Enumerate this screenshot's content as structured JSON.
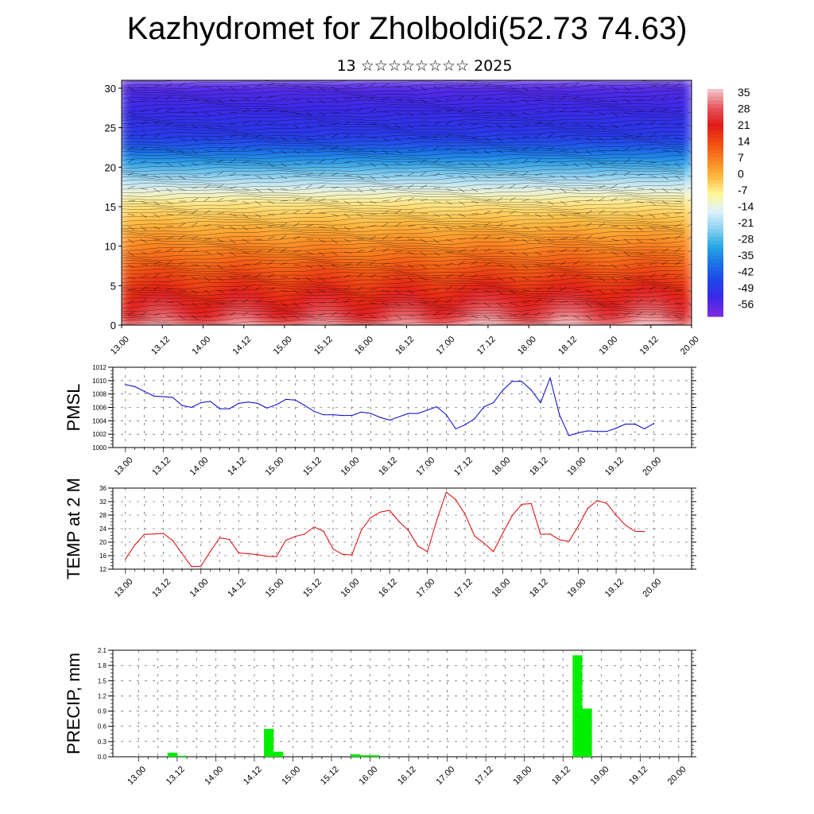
{
  "title": "Kazhydromet for Zholboldi(52.73 74.63)",
  "subtitle": "13 ☆☆☆☆☆☆☆☆ 2025",
  "chart_data": [
    {
      "type": "heatmap",
      "name": "cross-section temperature and wind",
      "x_tick_labels": [
        "13.00",
        "13.12",
        "14.00",
        "14.12",
        "15.00",
        "15.12",
        "16.00",
        "16.12",
        "17.00",
        "17.12",
        "18.00",
        "18.12",
        "19.00",
        "19.12",
        "20.00"
      ],
      "y_ticks": [
        0,
        5,
        10,
        15,
        20,
        25,
        30
      ],
      "ylim": [
        0,
        31
      ],
      "colorbar_labels": [
        "35",
        "28",
        "21",
        "14",
        "7",
        "0",
        "-7",
        "-14",
        "-21",
        "-28",
        "-35",
        "-42",
        "-49",
        "-56"
      ],
      "colorbar_colors": [
        "#f3c0c4",
        "#e5545a",
        "#e01a18",
        "#f04c12",
        "#f98222",
        "#fdb93e",
        "#fff79a",
        "#dff2fa",
        "#8fd2f0",
        "#29a9e4",
        "#1a74e6",
        "#1f47e8",
        "#3b28e8",
        "#7a2ce0"
      ]
    },
    {
      "type": "line",
      "ylabel": "PMSL",
      "x_tick_labels": [
        "13.00",
        "13.12",
        "14.00",
        "14.12",
        "15.00",
        "15.12",
        "16.00",
        "16.12",
        "17.00",
        "17.12",
        "18.00",
        "18.12",
        "19.00",
        "19.12",
        "20.00"
      ],
      "ylim": [
        1000,
        1012
      ],
      "y_ticks": [
        1000,
        1002,
        1004,
        1006,
        1008,
        1010,
        1012
      ],
      "color": "#0000cc",
      "values": [
        1009.4,
        1009.1,
        1008.4,
        1007.7,
        1007.6,
        1007.5,
        1006.3,
        1006.0,
        1006.7,
        1006.9,
        1005.8,
        1005.8,
        1006.6,
        1006.8,
        1006.6,
        1005.9,
        1006.4,
        1007.2,
        1007.1,
        1006.3,
        1005.4,
        1004.9,
        1004.9,
        1004.8,
        1004.8,
        1005.3,
        1005.1,
        1004.5,
        1004.1,
        1004.6,
        1005.1,
        1005.1,
        1005.6,
        1006.1,
        1004.9,
        1002.8,
        1003.4,
        1004.3,
        1006.1,
        1006.7,
        1008.6,
        1009.9,
        1009.9,
        1008.6,
        1006.7,
        1010.4,
        1004.9,
        1001.8,
        1002.2,
        1002.5,
        1002.4,
        1002.4,
        1002.9,
        1003.5,
        1003.5,
        1002.8,
        1003.6
      ]
    },
    {
      "type": "line",
      "ylabel": "TEMP at 2 M",
      "x_tick_labels": [
        "13.00",
        "13.12",
        "14.00",
        "14.12",
        "15.00",
        "15.12",
        "16.00",
        "16.12",
        "17.00",
        "17.12",
        "18.00",
        "18.12",
        "19.00",
        "19.12",
        "20.00"
      ],
      "ylim": [
        12,
        36
      ],
      "y_ticks": [
        12,
        16,
        20,
        24,
        28,
        32,
        36
      ],
      "color": "#dd0000",
      "values": [
        15.0,
        19.2,
        22.3,
        22.4,
        22.6,
        20.5,
        16.6,
        12.8,
        12.9,
        17.3,
        21.3,
        20.8,
        16.8,
        16.6,
        16.3,
        15.8,
        15.7,
        20.6,
        21.7,
        22.4,
        24.5,
        23.2,
        18.0,
        16.4,
        16.2,
        23.6,
        27.3,
        28.9,
        29.4,
        26.1,
        23.4,
        18.8,
        17.2,
        26.5,
        34.8,
        32.6,
        28.2,
        21.8,
        19.7,
        17.2,
        22.7,
        27.9,
        31.2,
        31.4,
        22.3,
        22.4,
        20.7,
        20.2,
        24.8,
        30.0,
        32.3,
        31.5,
        28.0,
        25.0,
        23.2,
        23.1
      ]
    },
    {
      "type": "bar",
      "ylabel": "PRECIP, mm",
      "x_tick_labels": [
        "13.00",
        "13.12",
        "14.00",
        "14.12",
        "15.00",
        "15.12",
        "16.00",
        "16.12",
        "17.00",
        "17.12",
        "18.00",
        "18.12",
        "19.00",
        "19.12",
        "20.00"
      ],
      "ylim": [
        0,
        2.1
      ],
      "y_tick_labels": [
        "0.0",
        "0.3",
        "0.6",
        "0.9",
        "1.2",
        "1.5",
        "1.8",
        "2.1"
      ],
      "color": "#00ee00",
      "bar_width_hours": 3,
      "bars": [
        {
          "start_hour": 9,
          "value": 0.08
        },
        {
          "start_hour": 12,
          "value": 0.02
        },
        {
          "start_hour": 39,
          "value": 0.55
        },
        {
          "start_hour": 42,
          "value": 0.1
        },
        {
          "start_hour": 66,
          "value": 0.05
        },
        {
          "start_hour": 69,
          "value": 0.03
        },
        {
          "start_hour": 72,
          "value": 0.03
        },
        {
          "start_hour": 135,
          "value": 2.0
        },
        {
          "start_hour": 138,
          "value": 0.95
        }
      ]
    }
  ]
}
